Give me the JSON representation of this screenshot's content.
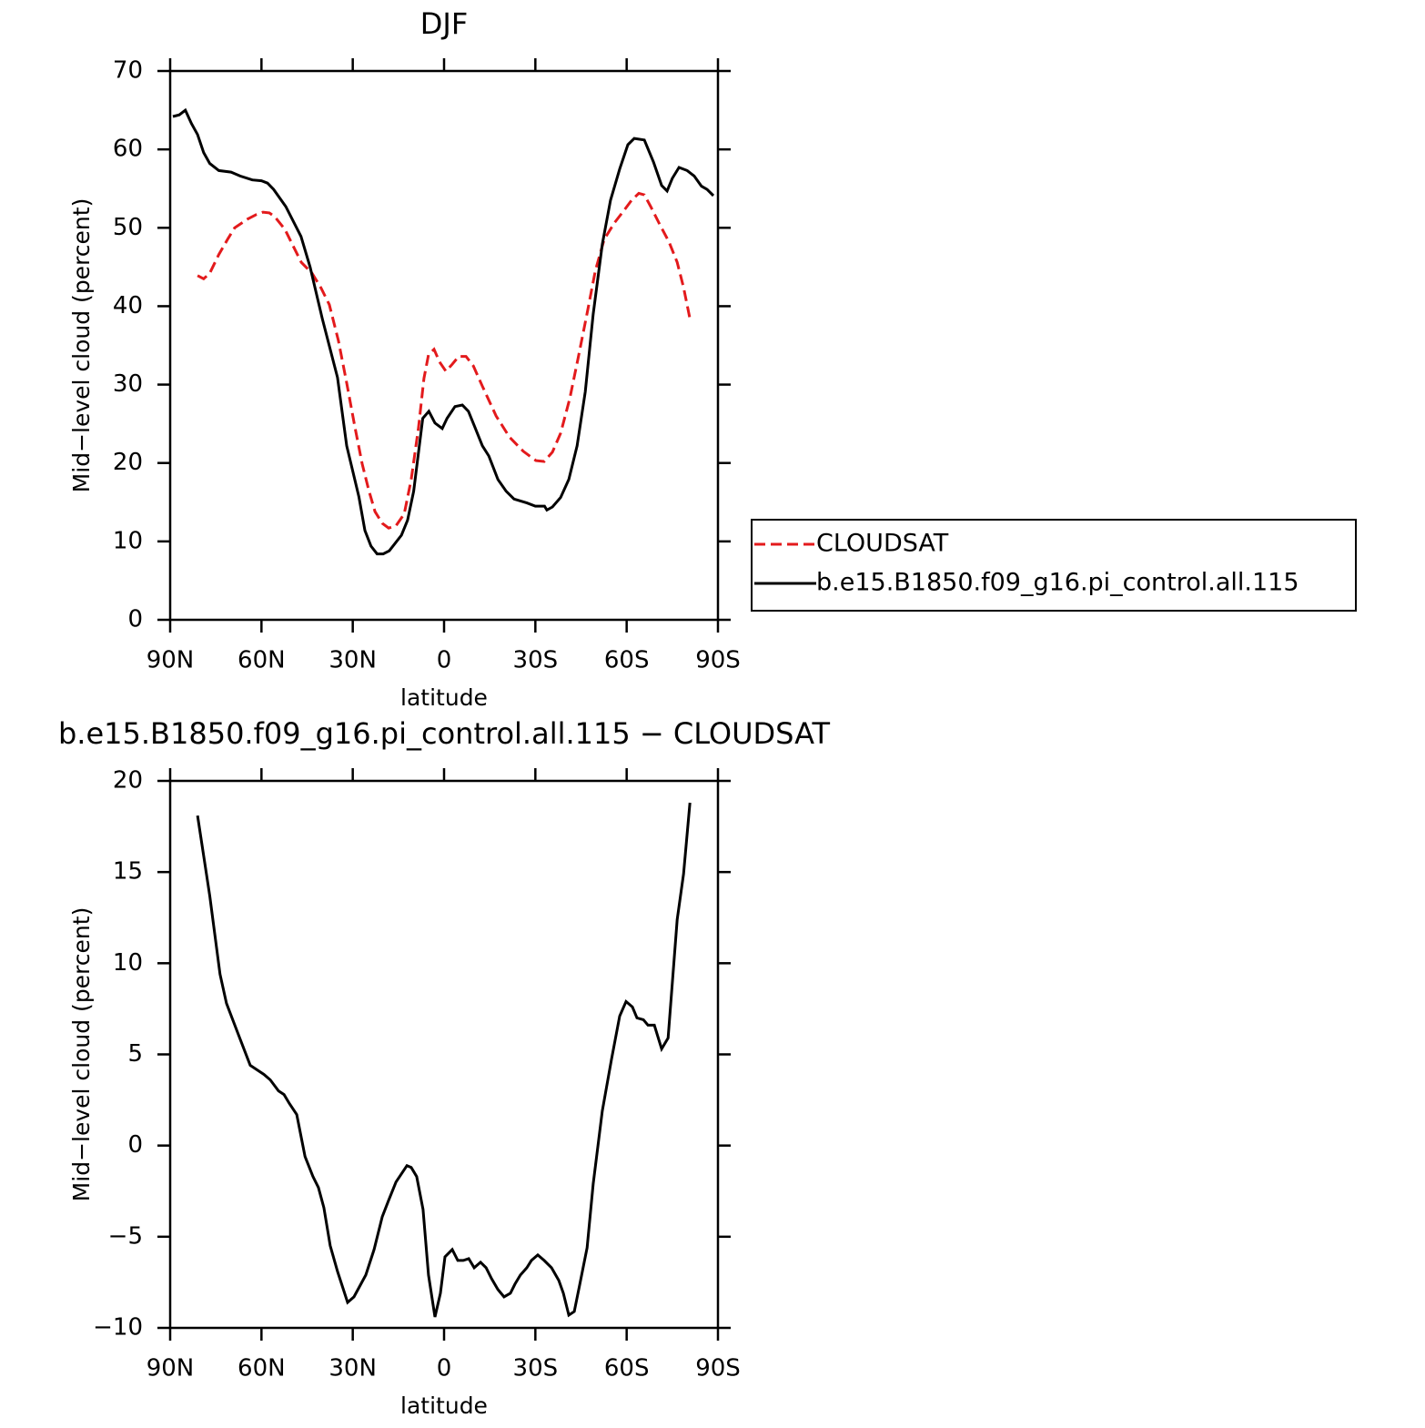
{
  "chart_data": [
    {
      "type": "line",
      "title": "DJF",
      "x_label": "latitude",
      "y_label": "Mid−level cloud (percent)",
      "xlim": [
        90,
        -90
      ],
      "xticks": [
        {
          "value": 90,
          "label": "90N"
        },
        {
          "value": 60,
          "label": "60N"
        },
        {
          "value": 30,
          "label": "30N"
        },
        0,
        {
          "value": -30,
          "label": "30S"
        },
        {
          "value": -60,
          "label": "60S"
        },
        {
          "value": -90,
          "label": "90S"
        }
      ],
      "ylim": [
        0,
        70
      ],
      "yticks": [
        0,
        10,
        20,
        30,
        40,
        50,
        60,
        70
      ],
      "legend": "right",
      "series": [
        {
          "name": "CLOUDSAT",
          "color": "#e31a1c",
          "dash": true,
          "x": [
            81,
            79,
            77,
            74,
            71,
            68.8,
            64.6,
            61.6,
            59.5,
            57.4,
            55.6,
            52.3,
            49.6,
            46.9,
            43.4,
            40.4,
            37.7,
            34.7,
            32,
            29.3,
            26.9,
            24.8,
            22.7,
            20.3,
            18.2,
            15.8,
            13.1,
            10.8,
            8.4,
            6.6,
            5.1,
            3.3,
            1.5,
            -0.6,
            -2.7,
            -4.8,
            -7.2,
            -9.6,
            -12.6,
            -17.1,
            -21.5,
            -26,
            -30.2,
            -32.9,
            -35.6,
            -38.3,
            -41.3,
            -44,
            -47,
            -49.7,
            -52.6,
            -55.9,
            -58.9,
            -61.6,
            -64,
            -65.8,
            -67.9,
            -70.9,
            -73.9,
            -76.6,
            -78.7,
            -80.8
          ],
          "values": [
            43.9,
            43.5,
            44.2,
            46.6,
            48.6,
            50.0,
            51.1,
            51.7,
            52.0,
            51.9,
            51.4,
            49.8,
            47.7,
            45.6,
            44.2,
            42.3,
            40.2,
            35.6,
            30.2,
            24.6,
            19.9,
            16.6,
            13.8,
            12.3,
            11.7,
            12.0,
            13.5,
            17.9,
            24.5,
            30.8,
            33.8,
            34.5,
            32.9,
            31.7,
            32.6,
            33.6,
            33.6,
            32.4,
            29.8,
            26.0,
            23.3,
            21.5,
            20.3,
            20.2,
            21.4,
            23.8,
            28.2,
            33.3,
            39.1,
            44.5,
            48.5,
            50.6,
            52.1,
            53.5,
            54.4,
            54.2,
            52.7,
            50.4,
            48.2,
            45.6,
            42.4,
            38.4
          ]
        },
        {
          "name": "b.e15.B1850.f09_g16.pi_control.all.115",
          "color": "#000000",
          "dash": false,
          "x": [
            89.1,
            87,
            85,
            83,
            81,
            79,
            77,
            74,
            70,
            67,
            63,
            60,
            58,
            56,
            52,
            47,
            44,
            40,
            35,
            32,
            28,
            26,
            24,
            22,
            20,
            18,
            14,
            12,
            10,
            7,
            5,
            3,
            0.6,
            -1,
            -3.6,
            -6,
            -8,
            -10,
            -12.6,
            -14.7,
            -17.7,
            -20.4,
            -23,
            -27.2,
            -30,
            -33,
            -33.8,
            -35.6,
            -38.3,
            -41,
            -43.7,
            -46.4,
            -49,
            -52,
            -54.7,
            -57.7,
            -60.4,
            -62.5,
            -65.8,
            -68.8,
            -71.5,
            -73.3,
            -75,
            -77.2,
            -79.9,
            -82.2,
            -84.6,
            -86.4,
            -88.5
          ],
          "values": [
            64.2,
            64.4,
            65.0,
            63.3,
            61.9,
            59.6,
            58.2,
            57.3,
            57.1,
            56.6,
            56.1,
            56.0,
            55.7,
            54.9,
            52.7,
            48.9,
            45.0,
            38.4,
            30.9,
            22.2,
            15.7,
            11.4,
            9.4,
            8.4,
            8.4,
            8.8,
            10.8,
            12.7,
            16.4,
            25.7,
            26.6,
            25.1,
            24.4,
            25.7,
            27.2,
            27.4,
            26.6,
            24.7,
            22.2,
            20.9,
            17.9,
            16.4,
            15.4,
            14.9,
            14.5,
            14.5,
            14.0,
            14.4,
            15.6,
            17.9,
            22.2,
            29.1,
            39.0,
            47.9,
            53.5,
            57.5,
            60.6,
            61.4,
            61.2,
            58.4,
            55.4,
            54.7,
            56.3,
            57.7,
            57.3,
            56.6,
            55.3,
            54.9,
            54.1
          ]
        }
      ]
    },
    {
      "type": "line",
      "title": "b.e15.B1850.f09_g16.pi_control.all.115 − CLOUDSAT",
      "x_label": "latitude",
      "y_label": "Mid−level cloud (percent)",
      "xlim": [
        90,
        -90
      ],
      "xticks": [
        {
          "value": 90,
          "label": "90N"
        },
        {
          "value": 60,
          "label": "60N"
        },
        {
          "value": 30,
          "label": "30N"
        },
        0,
        {
          "value": -30,
          "label": "30S"
        },
        {
          "value": -60,
          "label": "60S"
        },
        {
          "value": -90,
          "label": "90S"
        }
      ],
      "ylim": [
        -10,
        20
      ],
      "yticks": [
        {
          "value": -10,
          "label": "−10"
        },
        {
          "value": -5,
          "label": "−5"
        },
        0,
        5,
        10,
        15,
        20
      ],
      "series": [
        {
          "color": "#000000",
          "dash": false,
          "x": [
            81,
            79,
            77,
            73.6,
            71.5,
            67.6,
            63.7,
            61.9,
            59.2,
            57.1,
            54.4,
            52.6,
            50.8,
            48.4,
            45.7,
            43.1,
            41.3,
            39.5,
            37.4,
            35,
            31.7,
            29.6,
            25.7,
            23,
            20.3,
            18.2,
            15.8,
            12.2,
            10.8,
            9,
            6.9,
            5.1,
            3,
            1.2,
            -0.3,
            -2.7,
            -4.5,
            -6.3,
            -8.1,
            -9.9,
            -12,
            -13.8,
            -15.6,
            -17.7,
            -19.7,
            -21.8,
            -23.3,
            -25.1,
            -27.2,
            -28.7,
            -30.8,
            -32.9,
            -35.3,
            -37.7,
            -39.2,
            -41,
            -42.8,
            -44.6,
            -47,
            -49,
            -52,
            -55,
            -57.7,
            -59.8,
            -61.9,
            -63.4,
            -65.5,
            -67,
            -69.1,
            -71.5,
            -73.6,
            -76.6,
            -78.7,
            -80.8
          ],
          "values": [
            18.1,
            15.9,
            13.7,
            9.4,
            7.8,
            6.1,
            4.4,
            4.2,
            3.9,
            3.6,
            3.0,
            2.8,
            2.3,
            1.7,
            -0.6,
            -1.7,
            -2.3,
            -3.4,
            -5.5,
            -6.9,
            -8.6,
            -8.3,
            -7.1,
            -5.7,
            -3.9,
            -3.0,
            -2.0,
            -1.1,
            -1.2,
            -1.7,
            -3.5,
            -7.1,
            -9.4,
            -8.1,
            -6.1,
            -5.7,
            -6.3,
            -6.3,
            -6.2,
            -6.7,
            -6.4,
            -6.7,
            -7.3,
            -7.9,
            -8.3,
            -8.1,
            -7.6,
            -7.1,
            -6.7,
            -6.3,
            -6.0,
            -6.3,
            -6.7,
            -7.4,
            -8.1,
            -9.3,
            -9.1,
            -7.6,
            -5.6,
            -2.1,
            1.9,
            4.7,
            7.1,
            7.9,
            7.6,
            7.0,
            6.9,
            6.6,
            6.6,
            5.3,
            5.9,
            12.4,
            14.9,
            18.8
          ]
        }
      ]
    }
  ]
}
